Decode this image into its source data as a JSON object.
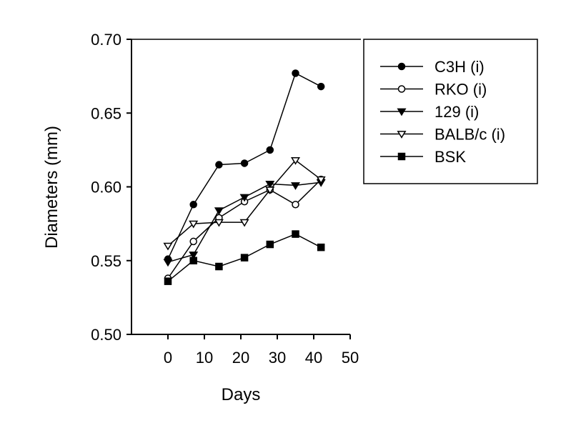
{
  "chart_data": {
    "type": "line",
    "xlabel": "Days",
    "ylabel": "Diameters (mm)",
    "xlim": [
      -10,
      50
    ],
    "ylim": [
      0.5,
      0.7
    ],
    "xticks": [
      0,
      10,
      20,
      30,
      40,
      50
    ],
    "xtick_labels": [
      "0",
      "10",
      "20",
      "30",
      "40",
      "50"
    ],
    "yticks": [
      0.5,
      0.55,
      0.6,
      0.65,
      0.7
    ],
    "ytick_labels": [
      "0.50",
      "0.55",
      "0.60",
      "0.65",
      "0.70"
    ],
    "grid": false,
    "legend_position": "right",
    "x": [
      0,
      7,
      14,
      21,
      28,
      35,
      42
    ],
    "series": [
      {
        "name": "C3H (i)",
        "marker": "filled-circle",
        "values": [
          0.551,
          0.588,
          0.615,
          0.616,
          0.625,
          0.677,
          0.668
        ]
      },
      {
        "name": "RKO (i)",
        "marker": "open-circle",
        "values": [
          0.538,
          0.563,
          0.579,
          0.59,
          0.598,
          0.588,
          0.605
        ]
      },
      {
        "name": "129 (i)",
        "marker": "filled-triangle-down",
        "values": [
          0.549,
          0.554,
          0.584,
          0.593,
          0.602,
          0.601,
          0.603
        ]
      },
      {
        "name": "BALB/c (i)",
        "marker": "open-triangle-down",
        "values": [
          0.56,
          0.575,
          0.576,
          0.576,
          0.598,
          0.618,
          0.605
        ]
      },
      {
        "name": "BSK",
        "marker": "filled-square",
        "values": [
          0.536,
          0.55,
          0.546,
          0.552,
          0.561,
          0.568,
          0.559
        ]
      }
    ],
    "colors": {
      "line": "#000000",
      "background": "#ffffff"
    }
  }
}
